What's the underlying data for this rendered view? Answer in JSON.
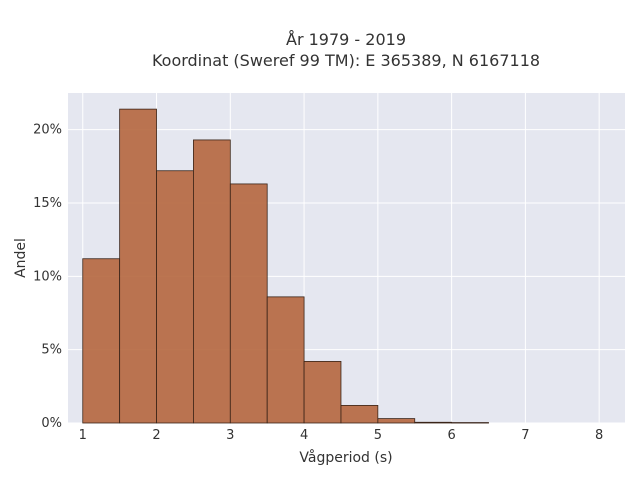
{
  "chart_data": {
    "type": "bar",
    "title_line1": "År 1979 - 2019",
    "title_line2": "Koordinat (Sweref 99 TM): E 365389, N 6167118",
    "xlabel": "Vågperiod (s)",
    "ylabel": "Andel",
    "x_ticks": [
      "1",
      "2",
      "3",
      "4",
      "5",
      "6",
      "7",
      "8"
    ],
    "y_ticks": [
      "0%",
      "5%",
      "10%",
      "15%",
      "20%"
    ],
    "xlim": [
      0.8,
      8.35
    ],
    "ylim": [
      0,
      22.5
    ],
    "bin_width": 0.5,
    "bins": [
      {
        "x0": 1.0,
        "value": 11.2
      },
      {
        "x0": 1.5,
        "value": 21.4
      },
      {
        "x0": 2.0,
        "value": 17.2
      },
      {
        "x0": 2.5,
        "value": 19.3
      },
      {
        "x0": 3.0,
        "value": 16.3
      },
      {
        "x0": 3.5,
        "value": 8.6
      },
      {
        "x0": 4.0,
        "value": 4.2
      },
      {
        "x0": 4.5,
        "value": 1.2
      },
      {
        "x0": 5.0,
        "value": 0.3
      },
      {
        "x0": 5.5,
        "value": 0.05
      },
      {
        "x0": 6.0,
        "value": 0.03
      }
    ],
    "bar_color": "#b5663e",
    "bar_edge": "#3a2418",
    "plot_bg": "#e5e7f0",
    "grid": true
  }
}
